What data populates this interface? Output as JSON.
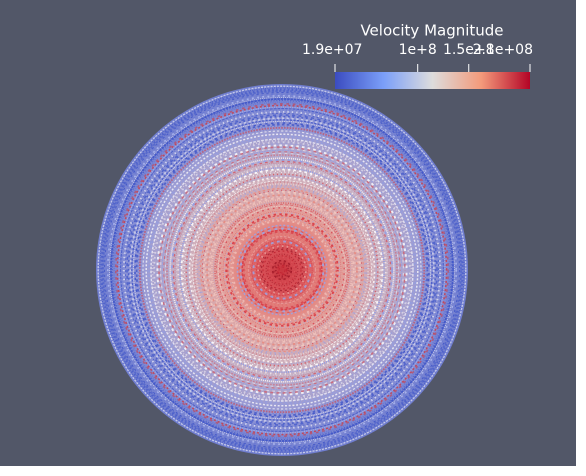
{
  "colorbar": {
    "title": "Velocity Magnitude",
    "ticks": [
      {
        "value": 19000000,
        "label": "1.9e+07"
      },
      {
        "value": 100000000,
        "label": "1e+8"
      },
      {
        "value": 150000000,
        "label": "1.5e+8"
      },
      {
        "value": 210000000,
        "label": "2.1e+08"
      }
    ]
  }
}
